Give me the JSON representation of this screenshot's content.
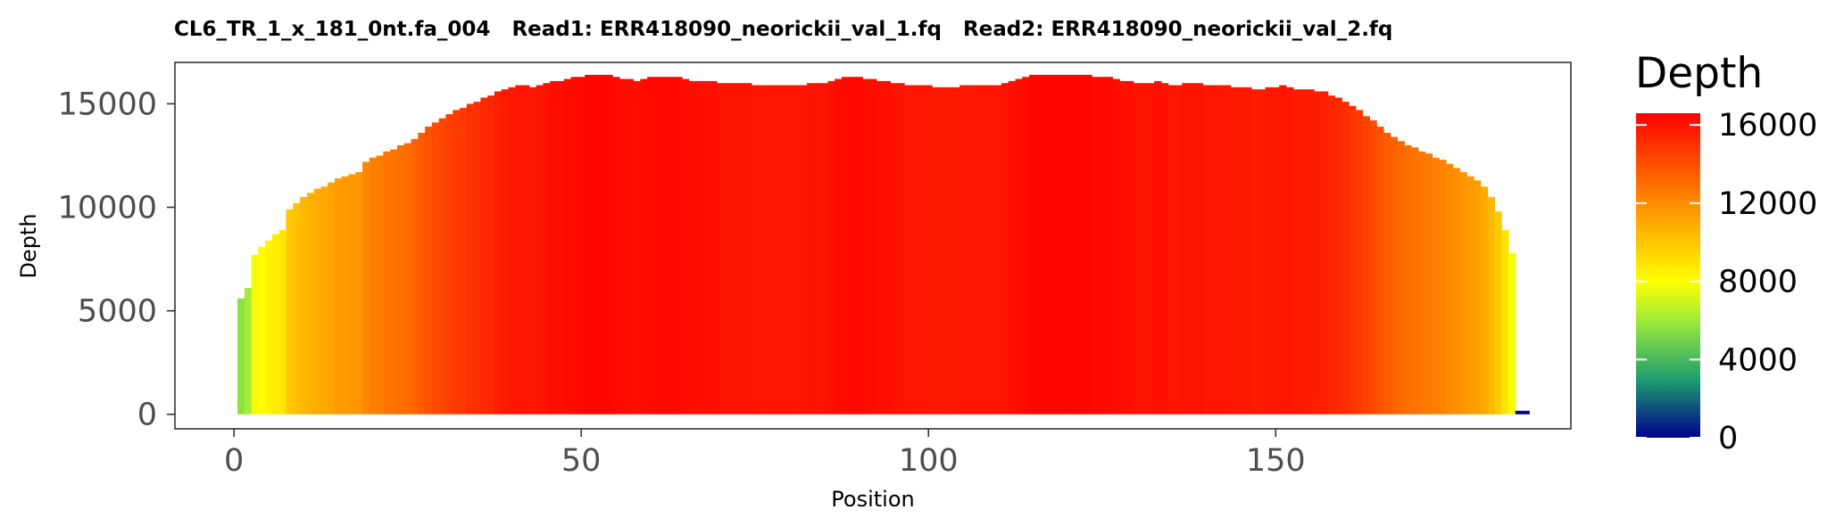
{
  "chart_data": {
    "type": "bar",
    "title": "CL6_TR_1_x_181_0nt.fa_004   Read1: ERR418090_neorickii_val_1.fq   Read2: ERR418090_neorickii_val_2.fq",
    "xlabel": "Position",
    "ylabel": "Depth",
    "xlim": [
      -8.5,
      192.5
    ],
    "ylim": [
      -700,
      17000
    ],
    "x_ticks": [
      0,
      50,
      100,
      150
    ],
    "x_tick_labels": [
      "0",
      "50",
      "100",
      "150"
    ],
    "y_ticks": [
      0,
      5000,
      10000,
      15000
    ],
    "y_tick_labels": [
      "0",
      "5000",
      "10000",
      "15000"
    ],
    "grid": false,
    "legend": {
      "title": "Depth",
      "placement": "right",
      "type": "colorbar",
      "range": [
        0,
        16600
      ],
      "ticks": [
        0,
        4000,
        8000,
        12000,
        16000
      ],
      "tick_labels": [
        "0",
        "4000",
        "8000",
        "12000",
        "16000"
      ],
      "colors": [
        {
          "value": 0,
          "color": "#00008B"
        },
        {
          "value": 3000,
          "color": "#1E9E6E"
        },
        {
          "value": 6000,
          "color": "#9EEA3A"
        },
        {
          "value": 8000,
          "color": "#FFFF00"
        },
        {
          "value": 12000,
          "color": "#FF8C00"
        },
        {
          "value": 16600,
          "color": "#FF0000"
        }
      ]
    },
    "series": [
      {
        "values": [
          5600,
          6100,
          7700,
          8100,
          8400,
          8700,
          8900,
          9900,
          10200,
          10500,
          10700,
          10900,
          11000,
          11200,
          11400,
          11500,
          11600,
          11700,
          12200,
          12400,
          12500,
          12700,
          12800,
          13000,
          13100,
          13300,
          13600,
          13900,
          14100,
          14300,
          14500,
          14700,
          14800,
          15000,
          15100,
          15300,
          15400,
          15600,
          15700,
          15800,
          15900,
          15900,
          15800,
          15900,
          16000,
          16100,
          16100,
          16200,
          16300,
          16300,
          16400,
          16400,
          16400,
          16400,
          16300,
          16200,
          16200,
          16100,
          16200,
          16300,
          16300,
          16300,
          16300,
          16300,
          16200,
          16100,
          16100,
          16100,
          16100,
          16000,
          16000,
          16000,
          16000,
          16000,
          15900,
          15900,
          15900,
          15900,
          15900,
          15900,
          15900,
          15900,
          16000,
          16000,
          16000,
          16100,
          16200,
          16300,
          16300,
          16300,
          16200,
          16200,
          16100,
          16100,
          16000,
          16000,
          15900,
          15900,
          15900,
          15900,
          15800,
          15800,
          15800,
          15800,
          15900,
          15900,
          15900,
          15900,
          15900,
          15900,
          16000,
          16100,
          16200,
          16300,
          16400,
          16400,
          16400,
          16400,
          16400,
          16400,
          16400,
          16400,
          16400,
          16300,
          16300,
          16300,
          16200,
          16100,
          16100,
          16000,
          16000,
          16000,
          16100,
          16000,
          15900,
          15900,
          16000,
          16000,
          16000,
          15900,
          15900,
          15900,
          15900,
          15800,
          15800,
          15800,
          15700,
          15700,
          15800,
          15800,
          15900,
          15800,
          15700,
          15700,
          15700,
          15600,
          15600,
          15400,
          15300,
          15100,
          14900,
          14700,
          14400,
          14200,
          13900,
          13600,
          13400,
          13200,
          13000,
          12900,
          12700,
          12600,
          12400,
          12300,
          12100,
          11900,
          11700,
          11500,
          11300,
          11000,
          10500,
          9800,
          8900,
          7800,
          100,
          100
        ],
        "x_start": 1
      }
    ]
  }
}
